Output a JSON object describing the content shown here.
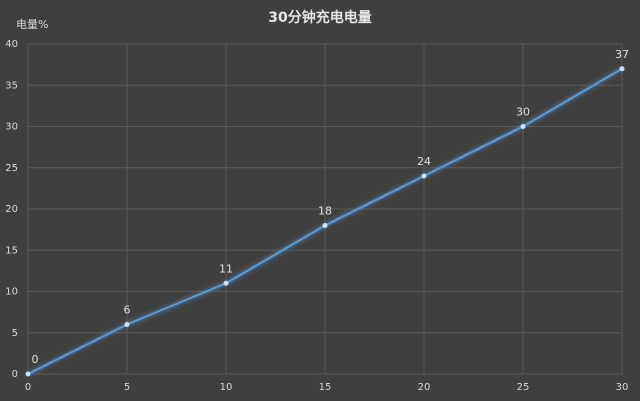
{
  "chart_data": {
    "type": "line",
    "title": "30分钟充电电量",
    "y_label": "电量%",
    "x": [
      0,
      5,
      10,
      15,
      20,
      25,
      30
    ],
    "series": [
      {
        "name": "电量",
        "color": "#5b9bd5",
        "values": [
          0,
          6,
          11,
          18,
          24,
          30,
          37
        ]
      }
    ],
    "xlim": [
      0,
      30
    ],
    "xticks": [
      0,
      5,
      10,
      15,
      20,
      25,
      30
    ],
    "ylim": [
      0,
      40
    ],
    "yticks": [
      0,
      5,
      10,
      15,
      20,
      25,
      30,
      35,
      40
    ],
    "grid": true,
    "data_labels": true
  }
}
